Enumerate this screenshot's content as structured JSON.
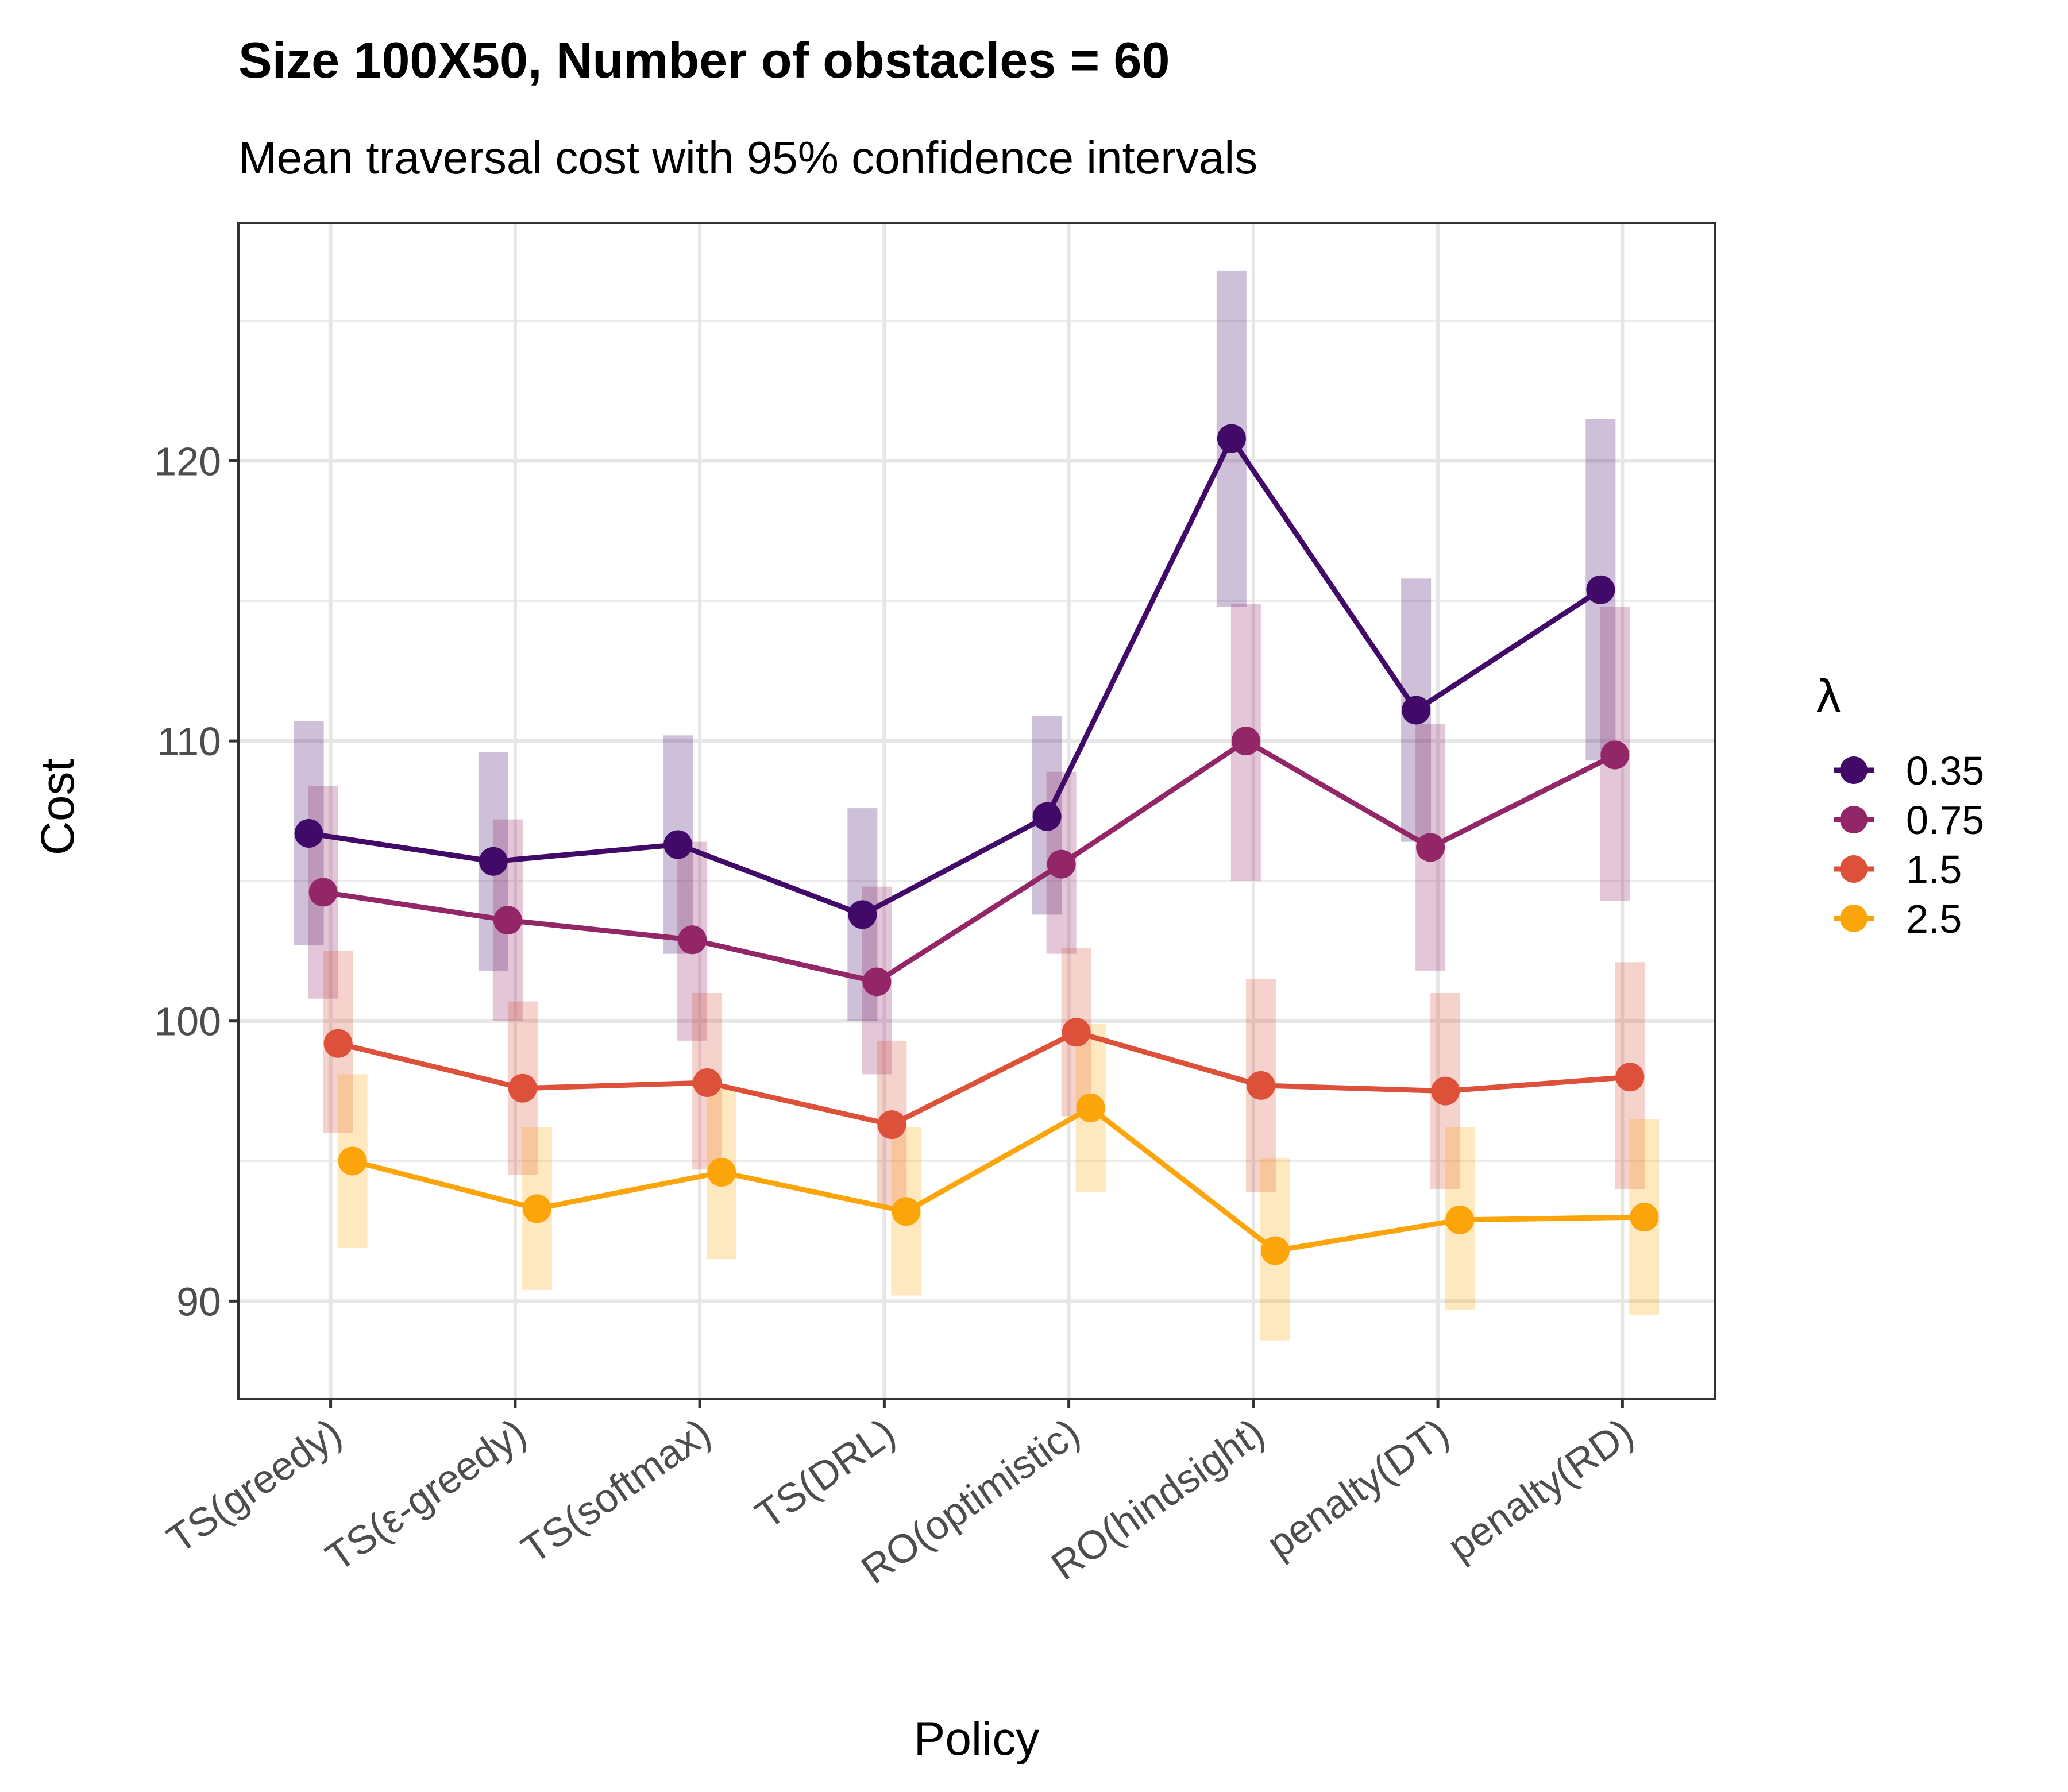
{
  "chart_data": {
    "type": "line",
    "title": "Size 100X50, Number of obstacles = 60",
    "subtitle": "Mean traversal cost with 95% confidence intervals",
    "xlabel": "Policy",
    "ylabel": "Cost",
    "categories": [
      "TS(greedy)",
      "TS(ε-greedy)",
      "TS(softmax)",
      "TS(DRL)",
      "RO(optimistic)",
      "RO(hindsight)",
      "penalty(DT)",
      "penalty(RD)"
    ],
    "ylim": [
      86.5,
      128.5
    ],
    "yticks": [
      90,
      100,
      110,
      120
    ],
    "grid": true,
    "legend": {
      "title": "λ",
      "position": "right"
    },
    "series": [
      {
        "name": "0.35",
        "color": "#420a68",
        "values": [
          106.7,
          105.7,
          106.3,
          103.8,
          107.3,
          120.8,
          111.1,
          115.4
        ],
        "lower": [
          102.7,
          101.8,
          102.4,
          100.0,
          103.8,
          114.8,
          106.4,
          109.3
        ],
        "upper": [
          110.7,
          109.6,
          110.2,
          107.6,
          110.9,
          126.8,
          115.8,
          121.5
        ]
      },
      {
        "name": "0.75",
        "color": "#932667",
        "values": [
          104.6,
          103.6,
          102.9,
          101.4,
          105.6,
          110.0,
          106.2,
          109.5
        ],
        "lower": [
          100.8,
          100.0,
          99.3,
          98.1,
          102.4,
          105.0,
          101.8,
          104.3
        ],
        "upper": [
          108.4,
          107.2,
          106.4,
          104.8,
          108.9,
          114.9,
          110.6,
          114.8
        ]
      },
      {
        "name": "1.5",
        "color": "#dd513a",
        "values": [
          99.2,
          97.6,
          97.8,
          96.3,
          99.6,
          97.7,
          97.5,
          98.0
        ],
        "lower": [
          96.0,
          94.5,
          94.7,
          93.3,
          96.6,
          93.9,
          94.0,
          94.0
        ],
        "upper": [
          102.5,
          100.7,
          101.0,
          99.3,
          102.6,
          101.5,
          101.0,
          102.1
        ]
      },
      {
        "name": "2.5",
        "color": "#fca50a",
        "values": [
          95.0,
          93.3,
          94.6,
          93.2,
          96.9,
          91.8,
          92.9,
          93.0
        ],
        "lower": [
          91.9,
          90.4,
          91.5,
          90.2,
          93.9,
          88.6,
          89.7,
          89.5
        ],
        "upper": [
          98.1,
          96.2,
          97.6,
          96.2,
          99.9,
          95.1,
          96.2,
          96.5
        ]
      }
    ]
  }
}
